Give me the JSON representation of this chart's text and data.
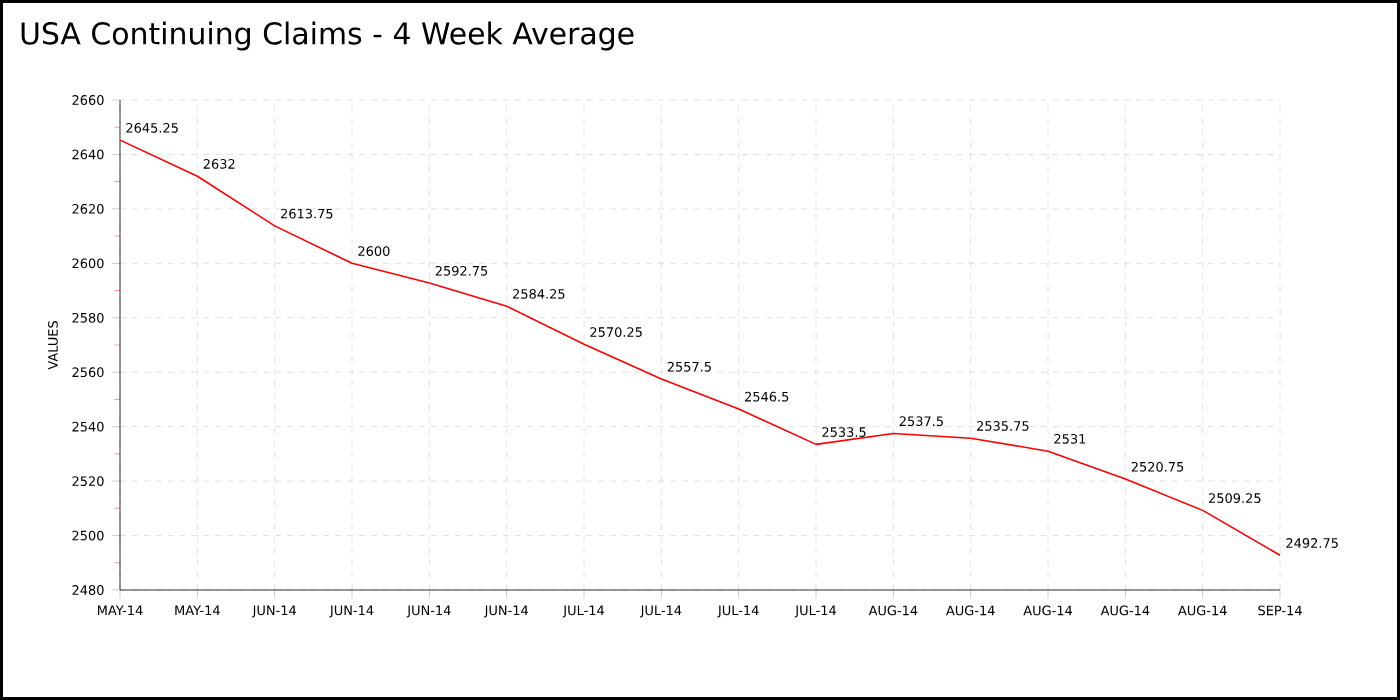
{
  "chart_data": {
    "type": "line",
    "title": "USA Continuing Claims - 4 Week Average",
    "ylabel": "VALUES",
    "categories": [
      "MAY-14",
      "MAY-14",
      "JUN-14",
      "JUN-14",
      "JUN-14",
      "JUN-14",
      "JUL-14",
      "JUL-14",
      "JUL-14",
      "JUL-14",
      "AUG-14",
      "AUG-14",
      "AUG-14",
      "AUG-14",
      "AUG-14",
      "SEP-14"
    ],
    "series": [
      {
        "color": "#ff0000",
        "values": [
          2645.25,
          2632,
          2613.75,
          2600,
          2592.75,
          2584.25,
          2570.25,
          2557.5,
          2546.5,
          2533.5,
          2537.5,
          2535.75,
          2531,
          2520.75,
          2509.25,
          2492.75
        ]
      }
    ],
    "ylim": [
      2480,
      2660
    ],
    "yticks": [
      2480,
      2500,
      2520,
      2540,
      2560,
      2580,
      2600,
      2620,
      2640,
      2660
    ],
    "grid": true,
    "data_labels": true,
    "marker": "none",
    "line_style": "solid"
  }
}
